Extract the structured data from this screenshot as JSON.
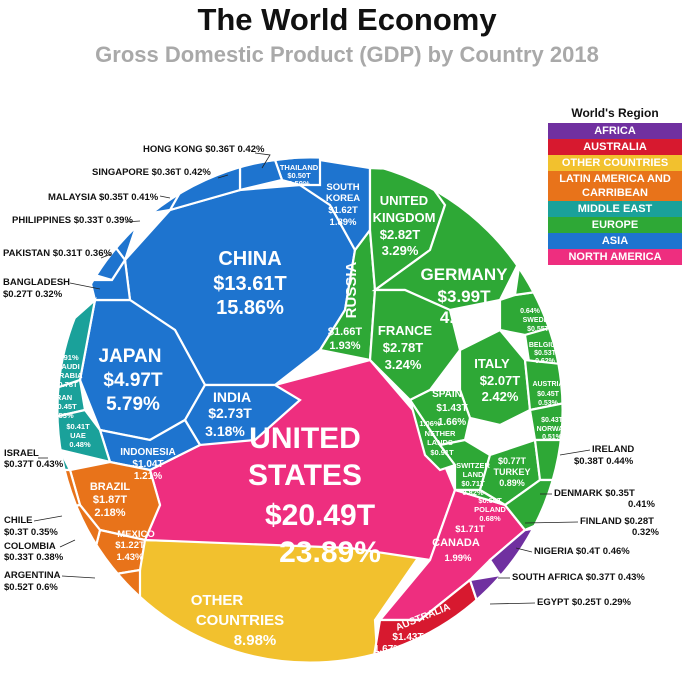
{
  "title": "The World Economy",
  "subtitle": "Gross Domestic Product (GDP) by Country 2018",
  "colors": {
    "africa": "#7030a0",
    "australia": "#d7192f",
    "other": "#f2c12e",
    "latin": "#e8731a",
    "middle_east": "#1aa19a",
    "europe": "#2ea836",
    "asia": "#1e74cf",
    "north_america": "#ee2e7f"
  },
  "legend": {
    "title": "World's Region",
    "items": [
      {
        "label": "AFRICA",
        "color": "#7030a0"
      },
      {
        "label": "AUSTRALIA",
        "color": "#d7192f"
      },
      {
        "label": "OTHER COUNTRIES",
        "color": "#f2c12e"
      },
      {
        "label": "LATIN AMERICA AND CARRIBEAN",
        "color": "#e8731a"
      },
      {
        "label": "MIDDLE EAST",
        "color": "#1aa19a"
      },
      {
        "label": "EUROPE",
        "color": "#2ea836"
      },
      {
        "label": "ASIA",
        "color": "#1e74cf"
      },
      {
        "label": "NORTH AMERICA",
        "color": "#ee2e7f"
      }
    ]
  },
  "chart_data": {
    "type": "voronoi-treemap",
    "unit": "USD trillions",
    "countries": [
      {
        "name": "UNITED STATES",
        "region": "North America",
        "gdp": "$20.49T",
        "share": "23.89%"
      },
      {
        "name": "CHINA",
        "region": "Asia",
        "gdp": "$13.61T",
        "share": "15.86%"
      },
      {
        "name": "JAPAN",
        "region": "Asia",
        "gdp": "$4.97T",
        "share": "5.79%"
      },
      {
        "name": "GERMANY",
        "region": "Europe",
        "gdp": "$3.99T",
        "share": "4.65%"
      },
      {
        "name": "UNITED KINGDOM",
        "region": "Europe",
        "gdp": "$2.82T",
        "share": "3.29%"
      },
      {
        "name": "FRANCE",
        "region": "Europe",
        "gdp": "$2.78T",
        "share": "3.24%"
      },
      {
        "name": "INDIA",
        "region": "Asia",
        "gdp": "$2.73T",
        "share": "3.18%"
      },
      {
        "name": "ITALY",
        "region": "Europe",
        "gdp": "$2.07T",
        "share": "2.42%"
      },
      {
        "name": "BRAZIL",
        "region": "Latin America",
        "gdp": "$1.87T",
        "share": "2.18%"
      },
      {
        "name": "CANADA",
        "region": "North America",
        "gdp": "$1.71T",
        "share": "1.99%"
      },
      {
        "name": "RUSSIA",
        "region": "Europe",
        "gdp": "$1.66T",
        "share": "1.93%"
      },
      {
        "name": "SOUTH KOREA",
        "region": "Asia",
        "gdp": "$1.62T",
        "share": "1.89%"
      },
      {
        "name": "AUSTRALIA",
        "region": "Australia",
        "gdp": "$1.43T",
        "share": "1.67%"
      },
      {
        "name": "SPAIN",
        "region": "Europe",
        "gdp": "$1.43T",
        "share": "1.66%"
      },
      {
        "name": "MEXICO",
        "region": "Latin America",
        "gdp": "$1.22T",
        "share": "1.43%"
      },
      {
        "name": "INDONESIA",
        "region": "Asia",
        "gdp": "$1.04T",
        "share": "1.21%"
      },
      {
        "name": "NETHERLANDS",
        "region": "Europe",
        "gdp": "$0.91T",
        "share": "1.06%"
      },
      {
        "name": "SAUDI ARABIA",
        "region": "Middle East",
        "gdp": "$0.78T",
        "share": "0.91%"
      },
      {
        "name": "TURKEY",
        "region": "Europe",
        "gdp": "$0.77T",
        "share": "0.89%"
      },
      {
        "name": "SWITZERLAND",
        "region": "Europe",
        "gdp": "$0.71T",
        "share": "0.82%"
      },
      {
        "name": "POLAND",
        "region": "Europe",
        "gdp": "$0.59T",
        "share": "0.68%"
      },
      {
        "name": "SWEDEN",
        "region": "Europe",
        "gdp": "$0.55T",
        "share": "0.64%"
      },
      {
        "name": "BELGIUM",
        "region": "Europe",
        "gdp": "$0.53T",
        "share": "0.62%"
      },
      {
        "name": "ARGENTINA",
        "region": "Latin America",
        "gdp": "$0.52T",
        "share": "0.6%"
      },
      {
        "name": "THAILAND",
        "region": "Asia",
        "gdp": "$0.50T",
        "share": "0.59%"
      },
      {
        "name": "IRAN",
        "region": "Middle East",
        "gdp": "$0.45T",
        "share": "0.53%"
      },
      {
        "name": "AUSTRIA",
        "region": "Europe",
        "gdp": "$0.45T",
        "share": "0.53%"
      },
      {
        "name": "NORWAY",
        "region": "Europe",
        "gdp": "$0.43T",
        "share": "0.51%"
      },
      {
        "name": "UAE",
        "region": "Middle East",
        "gdp": "$0.41T",
        "share": "0.48%"
      },
      {
        "name": "NIGERIA",
        "region": "Africa",
        "gdp": "$0.4T",
        "share": "0.46%"
      },
      {
        "name": "ISRAEL",
        "region": "Middle East",
        "gdp": "$0.37T",
        "share": "0.43%"
      },
      {
        "name": "SOUTH AFRICA",
        "region": "Africa",
        "gdp": "$0.37T",
        "share": "0.43%"
      },
      {
        "name": "HONG KONG",
        "region": "Asia",
        "gdp": "$0.36T",
        "share": "0.42%"
      },
      {
        "name": "SINGAPORE",
        "region": "Asia",
        "gdp": "$0.36T",
        "share": "0.42%"
      },
      {
        "name": "IRELAND",
        "region": "Europe",
        "gdp": "$0.38T",
        "share": "0.44%"
      },
      {
        "name": "DENMARK",
        "region": "Europe",
        "gdp": "$0.35T",
        "share": "0.41%"
      },
      {
        "name": "MALAYSIA",
        "region": "Asia",
        "gdp": "$0.35T",
        "share": "0.41%"
      },
      {
        "name": "CHILE",
        "region": "Latin America",
        "gdp": "$0.3T",
        "share": "0.35%"
      },
      {
        "name": "COLOMBIA",
        "region": "Latin America",
        "gdp": "$0.33T",
        "share": "0.38%"
      },
      {
        "name": "PHILIPPINES",
        "region": "Asia",
        "gdp": "$0.33T",
        "share": "0.39%"
      },
      {
        "name": "PAKISTAN",
        "region": "Asia",
        "gdp": "$0.31T",
        "share": "0.36%"
      },
      {
        "name": "FINLAND",
        "region": "Europe",
        "gdp": "$0.28T",
        "share": "0.32%"
      },
      {
        "name": "BANGLADESH",
        "region": "Asia",
        "gdp": "$0.27T",
        "share": "0.32%"
      },
      {
        "name": "EGYPT",
        "region": "Africa",
        "gdp": "$0.25T",
        "share": "0.29%"
      },
      {
        "name": "OTHER COUNTRIES",
        "region": "Other",
        "gdp": "",
        "share": "8.98%"
      }
    ]
  },
  "labels": {
    "us": [
      "UNITED",
      "STATES",
      "$20.49T",
      "23.89%"
    ],
    "china": [
      "CHINA",
      "$13.61T",
      "15.86%"
    ],
    "japan": [
      "JAPAN",
      "$4.97T",
      "5.79%"
    ],
    "germany": [
      "GERMANY",
      "$3.99T",
      "4.65%"
    ],
    "uk": [
      "UNITED",
      "KINGDOM",
      "$2.82T",
      "3.29%"
    ],
    "france": [
      "FRANCE",
      "$2.78T",
      "3.24%"
    ],
    "india": [
      "INDIA",
      "$2.73T",
      "3.18%"
    ],
    "italy": [
      "ITALY",
      "$2.07T",
      "2.42%"
    ],
    "brazil": [
      "BRAZIL",
      "$1.87T",
      "2.18%"
    ],
    "canada": [
      "$1.71T",
      "CANADA",
      "1.99%"
    ],
    "russia": [
      "RUSSIA"
    ],
    "russia_val": [
      "$1.66T",
      "1.93%"
    ],
    "korea": [
      "SOUTH",
      "KOREA",
      "$1.62T",
      "1.89%"
    ],
    "australia": [
      "AUSTRALIA",
      "$1.43T",
      "1.67%"
    ],
    "spain": [
      "SPAIN",
      "$1.43T",
      "1.66%"
    ],
    "mexico": [
      "MEXICO",
      "$1.22T",
      "1.43%"
    ],
    "indonesia": [
      "INDONESIA",
      "$1.04T",
      "1.21%"
    ],
    "netherlands": [
      "1.06%",
      "NETHER",
      "LANDS",
      "$0.91T"
    ],
    "saudi": [
      "0.91%",
      "SAUDI",
      "ARABIA",
      "0.78T"
    ],
    "turkey": [
      "$0.77T",
      "TURKEY",
      "0.89%"
    ],
    "switzerland": [
      "SWITZER",
      "LAND",
      "$0.71T",
      "0.82%"
    ],
    "poland": [
      "$0.59T",
      "POLAND",
      "0.68%"
    ],
    "sweden": [
      "0.64%",
      "SWEDEN",
      "$0.55T"
    ],
    "belgium": [
      "BELGIUM",
      "$0.53T",
      "0.62%"
    ],
    "thailand": [
      "THAILAND",
      "$0.50T",
      "0.59%"
    ],
    "iran": [
      "IRAN",
      "$0.45T",
      "0.53%"
    ],
    "austria": [
      "AUSTRIA",
      "$0.45T",
      "0.53%"
    ],
    "norway": [
      "$0.43T",
      "NORWAY",
      "0.51%"
    ],
    "uae": [
      "$0.41T",
      "UAE",
      "0.48%"
    ],
    "other": [
      "OTHER",
      "COUNTRIES",
      "8.98%"
    ],
    "hongkong": "HONG KONG $0.36T 0.42%",
    "singapore": "SINGAPORE $0.36T 0.42%",
    "malaysia": "MALAYSIA $0.35T 0.41%",
    "philippines": "PHILIPPINES $0.33T 0.39%",
    "pakistan": "PAKISTAN $0.31T 0.36%",
    "bangladesh": [
      "BANGLADESH",
      "$0.27T 0.32%"
    ],
    "israel": [
      "ISRAEL",
      "$0.37T 0.43%"
    ],
    "chile": [
      "CHILE",
      "$0.3T 0.35%"
    ],
    "colombia": [
      "COLOMBIA",
      "$0.33T 0.38%"
    ],
    "argentina": [
      "ARGENTINA",
      "$0.52T 0.6%"
    ],
    "ireland": [
      "IRELAND",
      "$0.38T 0.44%"
    ],
    "denmark": [
      "DENMARK $0.35T",
      "0.41%"
    ],
    "finland": [
      "FINLAND $0.28T",
      "0.32%"
    ],
    "nigeria": "NIGERIA $0.4T 0.46%",
    "southafrica": "SOUTH AFRICA $0.37T 0.43%",
    "egypt": "EGYPT $0.25T 0.29%"
  }
}
